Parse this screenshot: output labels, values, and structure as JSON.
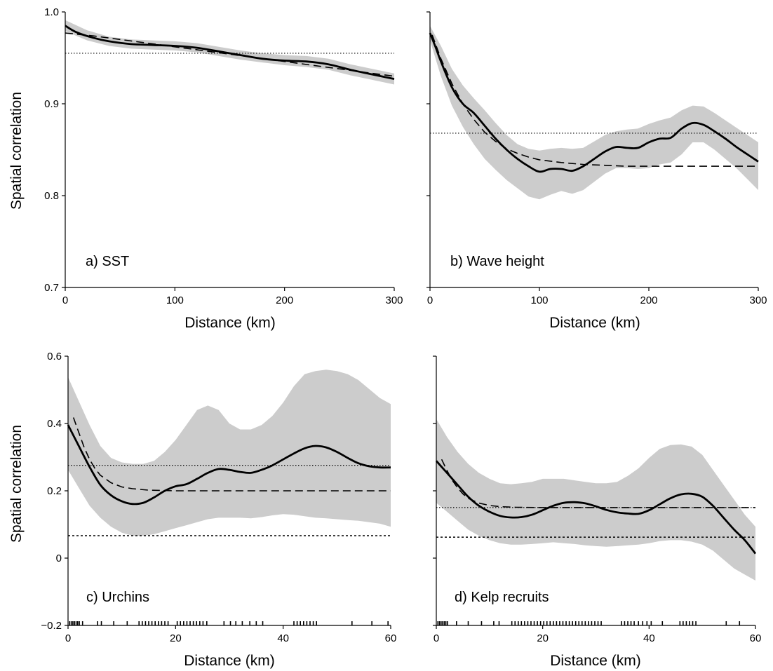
{
  "chart_data": [
    {
      "id": "a",
      "type": "line",
      "panel_label": "a) SST",
      "xlabel": "Distance (km)",
      "ylabel": "Spatial correlation",
      "xlim": [
        0,
        300
      ],
      "ylim": [
        0.7,
        1.0
      ],
      "xticks": [
        "0",
        "100",
        "200",
        "300"
      ],
      "yticks": [
        "0.7",
        "0.8",
        "0.9",
        "1.0"
      ],
      "series": [
        {
          "role": "smooth",
          "x": [
            0,
            10,
            25,
            40,
            60,
            80,
            100,
            120,
            140,
            160,
            180,
            200,
            220,
            240,
            260,
            280,
            300
          ],
          "y": [
            0.985,
            0.978,
            0.972,
            0.968,
            0.965,
            0.964,
            0.963,
            0.961,
            0.957,
            0.953,
            0.949,
            0.947,
            0.946,
            0.943,
            0.937,
            0.932,
            0.927
          ]
        },
        {
          "role": "band_upper",
          "x": [
            0,
            20,
            40,
            60,
            80,
            100,
            120,
            140,
            160,
            180,
            200,
            220,
            240,
            260,
            280,
            300
          ],
          "y": [
            0.991,
            0.98,
            0.973,
            0.97,
            0.969,
            0.968,
            0.966,
            0.962,
            0.958,
            0.955,
            0.953,
            0.952,
            0.949,
            0.943,
            0.938,
            0.933
          ]
        },
        {
          "role": "band_lower",
          "x": [
            0,
            20,
            40,
            60,
            80,
            100,
            120,
            140,
            160,
            180,
            200,
            220,
            240,
            260,
            280,
            300
          ],
          "y": [
            0.979,
            0.969,
            0.963,
            0.96,
            0.959,
            0.958,
            0.956,
            0.952,
            0.948,
            0.945,
            0.942,
            0.94,
            0.937,
            0.931,
            0.926,
            0.921
          ]
        },
        {
          "role": "fit",
          "x": [
            0,
            25,
            50,
            75,
            100,
            125,
            150,
            175,
            200,
            225,
            250,
            275,
            300
          ],
          "y": [
            0.977,
            0.974,
            0.97,
            0.966,
            0.962,
            0.958,
            0.954,
            0.95,
            0.946,
            0.942,
            0.938,
            0.934,
            0.93
          ]
        },
        {
          "role": "mean",
          "y_value": 0.955
        }
      ]
    },
    {
      "id": "b",
      "type": "line",
      "panel_label": "b) Wave height",
      "xlabel": "Distance (km)",
      "ylabel": "",
      "xlim": [
        0,
        300
      ],
      "ylim": [
        0.7,
        1.0
      ],
      "xticks": [
        "0",
        "100",
        "200",
        "300"
      ],
      "yticks": [
        "",
        "",
        "",
        ""
      ],
      "series": [
        {
          "role": "smooth",
          "x": [
            0,
            5,
            10,
            20,
            30,
            40,
            50,
            60,
            70,
            80,
            90,
            100,
            110,
            120,
            130,
            140,
            150,
            160,
            170,
            180,
            190,
            200,
            210,
            220,
            230,
            240,
            250,
            260,
            270,
            280,
            290,
            300
          ],
          "y": [
            0.977,
            0.962,
            0.946,
            0.918,
            0.9,
            0.89,
            0.876,
            0.862,
            0.85,
            0.84,
            0.832,
            0.826,
            0.829,
            0.829,
            0.827,
            0.832,
            0.84,
            0.848,
            0.853,
            0.852,
            0.852,
            0.858,
            0.862,
            0.863,
            0.873,
            0.879,
            0.877,
            0.87,
            0.862,
            0.853,
            0.845,
            0.837
          ]
        },
        {
          "role": "band_upper",
          "x": [
            0,
            10,
            20,
            30,
            40,
            50,
            60,
            70,
            80,
            90,
            100,
            110,
            120,
            130,
            140,
            150,
            160,
            170,
            180,
            190,
            200,
            210,
            220,
            230,
            240,
            250,
            260,
            270,
            280,
            290,
            300
          ],
          "y": [
            0.985,
            0.963,
            0.938,
            0.92,
            0.906,
            0.893,
            0.879,
            0.866,
            0.856,
            0.851,
            0.849,
            0.851,
            0.852,
            0.851,
            0.852,
            0.859,
            0.866,
            0.87,
            0.872,
            0.873,
            0.878,
            0.882,
            0.885,
            0.893,
            0.898,
            0.897,
            0.89,
            0.882,
            0.874,
            0.866,
            0.858
          ]
        },
        {
          "role": "band_lower",
          "x": [
            0,
            10,
            20,
            30,
            40,
            50,
            60,
            70,
            80,
            90,
            100,
            110,
            120,
            130,
            140,
            150,
            160,
            170,
            180,
            190,
            200,
            210,
            220,
            230,
            240,
            250,
            260,
            270,
            280,
            290,
            300
          ],
          "y": [
            0.969,
            0.93,
            0.898,
            0.875,
            0.856,
            0.84,
            0.828,
            0.817,
            0.808,
            0.799,
            0.796,
            0.801,
            0.805,
            0.802,
            0.806,
            0.815,
            0.824,
            0.83,
            0.83,
            0.829,
            0.83,
            0.834,
            0.836,
            0.845,
            0.858,
            0.858,
            0.85,
            0.84,
            0.83,
            0.818,
            0.806
          ]
        },
        {
          "role": "fit",
          "x": [
            2,
            10,
            20,
            30,
            40,
            50,
            60,
            70,
            80,
            90,
            100,
            120,
            140,
            160,
            180,
            200,
            230,
            260,
            300
          ],
          "y": [
            0.975,
            0.949,
            0.922,
            0.9,
            0.883,
            0.869,
            0.859,
            0.851,
            0.846,
            0.842,
            0.839,
            0.836,
            0.834,
            0.833,
            0.832,
            0.832,
            0.832,
            0.832,
            0.832
          ]
        },
        {
          "role": "mean",
          "y_value": 0.868
        }
      ]
    },
    {
      "id": "c",
      "type": "line",
      "panel_label": "c) Urchins",
      "xlabel": "Distance (km)",
      "ylabel": "Spatial correlation",
      "xlim": [
        0,
        60
      ],
      "ylim": [
        -0.3,
        0.6
      ],
      "xticks": [
        "0",
        "20",
        "40",
        "60"
      ],
      "yticks": [
        "−0.2",
        "0",
        "0.2",
        "0.4",
        "0.6"
      ],
      "series": [
        {
          "role": "smooth",
          "x": [
            0,
            2,
            4,
            6,
            8,
            10,
            12,
            14,
            16,
            18,
            20,
            22,
            24,
            26,
            28,
            30,
            32,
            34,
            36,
            38,
            40,
            42,
            44,
            46,
            48,
            50,
            52,
            54,
            56,
            58,
            60
          ],
          "y": [
            0.37,
            0.3,
            0.23,
            0.17,
            0.135,
            0.115,
            0.106,
            0.11,
            0.128,
            0.15,
            0.165,
            0.172,
            0.19,
            0.21,
            0.223,
            0.22,
            0.213,
            0.21,
            0.22,
            0.235,
            0.255,
            0.275,
            0.292,
            0.3,
            0.295,
            0.28,
            0.26,
            0.242,
            0.232,
            0.228,
            0.228
          ]
        },
        {
          "role": "band_upper",
          "x": [
            0,
            2,
            4,
            6,
            8,
            10,
            12,
            14,
            16,
            18,
            20,
            22,
            24,
            26,
            28,
            30,
            32,
            34,
            36,
            38,
            40,
            42,
            44,
            46,
            48,
            50,
            52,
            54,
            56,
            58,
            60
          ],
          "y": [
            0.53,
            0.45,
            0.37,
            0.3,
            0.26,
            0.245,
            0.24,
            0.24,
            0.25,
            0.28,
            0.32,
            0.37,
            0.42,
            0.435,
            0.42,
            0.375,
            0.355,
            0.355,
            0.37,
            0.4,
            0.445,
            0.5,
            0.54,
            0.55,
            0.555,
            0.55,
            0.54,
            0.52,
            0.49,
            0.46,
            0.44
          ]
        },
        {
          "role": "band_lower",
          "x": [
            0,
            2,
            4,
            6,
            8,
            10,
            12,
            14,
            16,
            18,
            20,
            22,
            24,
            26,
            28,
            30,
            32,
            34,
            36,
            38,
            40,
            42,
            44,
            46,
            48,
            50,
            52,
            54,
            56,
            58,
            60
          ],
          "y": [
            0.22,
            0.16,
            0.1,
            0.06,
            0.03,
            0.01,
            0.0,
            0.0,
            0.005,
            0.015,
            0.025,
            0.035,
            0.045,
            0.055,
            0.06,
            0.06,
            0.06,
            0.058,
            0.062,
            0.068,
            0.072,
            0.07,
            0.065,
            0.06,
            0.058,
            0.055,
            0.052,
            0.05,
            0.045,
            0.04,
            0.03
          ]
        },
        {
          "role": "fit",
          "x": [
            1,
            2,
            3,
            4,
            5,
            6,
            8,
            10,
            12,
            15,
            20,
            30,
            40,
            50,
            60
          ],
          "y": [
            0.395,
            0.345,
            0.295,
            0.255,
            0.225,
            0.202,
            0.177,
            0.163,
            0.157,
            0.152,
            0.15,
            0.15,
            0.15,
            0.15,
            0.15
          ]
        },
        {
          "role": "mean",
          "y_value": 0.235
        },
        {
          "role": "zero",
          "y_value": 0.0
        },
        {
          "role": "rug",
          "x": [
            0.3,
            0.6,
            0.9,
            1.2,
            1.5,
            1.8,
            2.1,
            2.7,
            5.5,
            6.2,
            8.5,
            11.0,
            13.2,
            13.8,
            14.4,
            15.0,
            15.6,
            16.2,
            16.8,
            17.4,
            18.0,
            18.6,
            20.3,
            20.9,
            21.5,
            22.1,
            22.7,
            23.3,
            23.9,
            24.5,
            25.1,
            25.8,
            29.0,
            30.2,
            31.2,
            32.4,
            33.8,
            35.0,
            36.2,
            42.0,
            42.6,
            43.2,
            43.8,
            44.4,
            45.0,
            45.6,
            46.2,
            52.8,
            56.5,
            59.5
          ]
        }
      ]
    },
    {
      "id": "d",
      "type": "line",
      "panel_label": "d) Kelp recruits",
      "xlabel": "Distance (km)",
      "ylabel": "",
      "xlim": [
        0,
        60
      ],
      "ylim": [
        -0.3,
        0.6
      ],
      "xticks": [
        "0",
        "20",
        "40",
        "60"
      ],
      "yticks": [
        "",
        "",
        "",
        "",
        ""
      ],
      "series": [
        {
          "role": "smooth",
          "x": [
            0,
            2,
            4,
            6,
            8,
            10,
            12,
            14,
            16,
            18,
            20,
            22,
            24,
            26,
            28,
            30,
            32,
            34,
            36,
            38,
            40,
            42,
            44,
            46,
            48,
            50,
            52,
            54,
            56,
            58,
            60
          ],
          "y": [
            0.25,
            0.21,
            0.17,
            0.13,
            0.1,
            0.08,
            0.066,
            0.061,
            0.062,
            0.07,
            0.085,
            0.1,
            0.11,
            0.112,
            0.108,
            0.098,
            0.086,
            0.078,
            0.074,
            0.073,
            0.085,
            0.105,
            0.125,
            0.138,
            0.14,
            0.13,
            0.1,
            0.06,
            0.02,
            -0.015,
            -0.06
          ]
        },
        {
          "role": "band_upper",
          "x": [
            0,
            2,
            4,
            6,
            8,
            10,
            12,
            14,
            16,
            18,
            20,
            22,
            24,
            26,
            28,
            30,
            32,
            34,
            36,
            38,
            40,
            42,
            44,
            46,
            48,
            50,
            52,
            54,
            56,
            58,
            60
          ],
          "y": [
            0.39,
            0.33,
            0.28,
            0.24,
            0.21,
            0.19,
            0.175,
            0.172,
            0.175,
            0.18,
            0.19,
            0.19,
            0.19,
            0.185,
            0.18,
            0.175,
            0.175,
            0.18,
            0.2,
            0.225,
            0.26,
            0.29,
            0.303,
            0.305,
            0.298,
            0.27,
            0.22,
            0.17,
            0.12,
            0.07,
            0.03
          ]
        },
        {
          "role": "band_lower",
          "x": [
            0,
            2,
            4,
            6,
            8,
            10,
            12,
            14,
            16,
            18,
            20,
            22,
            24,
            26,
            28,
            30,
            32,
            34,
            36,
            38,
            40,
            42,
            44,
            46,
            48,
            50,
            52,
            54,
            56,
            58,
            60
          ],
          "y": [
            0.11,
            0.08,
            0.05,
            0.02,
            0.0,
            -0.015,
            -0.025,
            -0.03,
            -0.03,
            -0.028,
            -0.025,
            -0.022,
            -0.025,
            -0.028,
            -0.032,
            -0.035,
            -0.037,
            -0.035,
            -0.032,
            -0.03,
            -0.025,
            -0.018,
            -0.015,
            -0.015,
            -0.02,
            -0.03,
            -0.05,
            -0.08,
            -0.11,
            -0.13,
            -0.15
          ]
        },
        {
          "role": "fit",
          "x": [
            1,
            2,
            3,
            4,
            5,
            6,
            8,
            10,
            12,
            15,
            20,
            30,
            40,
            50,
            60
          ],
          "y": [
            0.255,
            0.218,
            0.185,
            0.16,
            0.14,
            0.125,
            0.109,
            0.101,
            0.097,
            0.095,
            0.094,
            0.094,
            0.094,
            0.094,
            0.094
          ]
        },
        {
          "role": "mean",
          "y_value": 0.094
        },
        {
          "role": "zero",
          "y_value": -0.005
        },
        {
          "role": "rug",
          "x": [
            0.3,
            0.6,
            0.9,
            1.2,
            1.5,
            1.8,
            2.1,
            3.8,
            6.0,
            8.5,
            10.8,
            11.8,
            14.2,
            14.8,
            15.4,
            16.0,
            16.6,
            17.2,
            17.8,
            18.4,
            19.0,
            19.6,
            20.2,
            20.8,
            21.4,
            22.0,
            22.6,
            23.2,
            23.8,
            24.4,
            25.0,
            25.6,
            26.2,
            26.8,
            27.4,
            28.0,
            28.6,
            29.2,
            29.8,
            30.4,
            31.0,
            34.8,
            35.4,
            36.0,
            36.6,
            37.2,
            38.0,
            38.8,
            39.6,
            40.4,
            42.5,
            45.8,
            46.4,
            47.0,
            47.6,
            48.2,
            48.8,
            54.5,
            57.0
          ]
        }
      ]
    }
  ]
}
